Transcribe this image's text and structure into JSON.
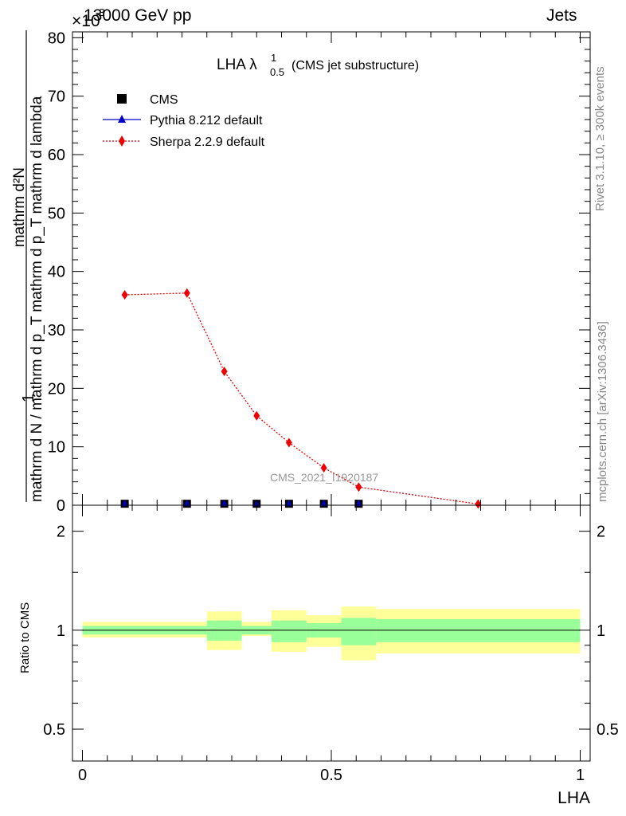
{
  "header": {
    "left": "13000 GeV pp",
    "right": "Jets",
    "multiplier_base": "×10",
    "multiplier_exp": "-3"
  },
  "side": {
    "rivet": "Rivet 3.1.10, ≥ 300k events",
    "mcplots": "mcplots.cern.ch [arXiv:1306.3436]"
  },
  "chart_data": [
    {
      "type": "line",
      "title": "LHA λ",
      "title_sup": "1",
      "title_sub": "0.5",
      "subtitle": "(CMS jet substructure)",
      "watermark": "CMS_2021_I1920187",
      "ylabel_numerator": "mathrm d²N",
      "ylabel_denominator": "mathrm d N / mathrm d p_T mathrm d p_T mathrm d lambda",
      "ylabel_prefix": "1",
      "ylim": [
        0,
        81
      ],
      "yticks": [
        0,
        10,
        20,
        30,
        40,
        50,
        60,
        70,
        80
      ],
      "xlim": [
        -0.02,
        1.02
      ],
      "series": [
        {
          "name": "CMS",
          "marker": "square",
          "color": "#000000",
          "x": [
            0.085,
            0.21,
            0.285,
            0.35,
            0.415,
            0.485,
            0.555
          ],
          "y": [
            0.25,
            0.25,
            0.25,
            0.25,
            0.25,
            0.25,
            0.25
          ]
        },
        {
          "name": "Pythia 8.212 default",
          "marker": "triangle",
          "color": "#0000cc",
          "x": [
            0.085,
            0.21,
            0.285,
            0.35,
            0.415,
            0.485,
            0.555
          ],
          "y": [
            0.25,
            0.25,
            0.25,
            0.25,
            0.25,
            0.25,
            0.25
          ]
        },
        {
          "name": "Sherpa 2.2.9 default",
          "marker": "diamond",
          "color": "#ee0000",
          "x": [
            0.085,
            0.21,
            0.285,
            0.35,
            0.415,
            0.485,
            0.555,
            0.795
          ],
          "y": [
            36.0,
            36.3,
            22.9,
            15.3,
            10.7,
            6.4,
            3.1,
            0.2
          ]
        }
      ]
    },
    {
      "type": "area",
      "ylabel": "Ratio to CMS",
      "xlabel": "LHA",
      "ylim": [
        0.4,
        2.4
      ],
      "yscale": "log",
      "yticks": [
        0.5,
        1,
        2
      ],
      "yticklabels": [
        "0.5",
        "1",
        "2"
      ],
      "xticks": [
        0,
        0.5,
        1
      ],
      "xticklabels": [
        "0",
        "0.5",
        "1"
      ],
      "bins": [
        {
          "lo": 0.0,
          "hi": 0.25,
          "green": [
            0.97,
            1.03
          ],
          "yellow": [
            0.95,
            1.06
          ]
        },
        {
          "lo": 0.25,
          "hi": 0.32,
          "green": [
            0.93,
            1.07
          ],
          "yellow": [
            0.87,
            1.14
          ]
        },
        {
          "lo": 0.32,
          "hi": 0.38,
          "green": [
            0.97,
            1.03
          ],
          "yellow": [
            0.96,
            1.06
          ]
        },
        {
          "lo": 0.38,
          "hi": 0.45,
          "green": [
            0.92,
            1.07
          ],
          "yellow": [
            0.86,
            1.15
          ]
        },
        {
          "lo": 0.45,
          "hi": 0.52,
          "green": [
            0.95,
            1.05
          ],
          "yellow": [
            0.89,
            1.11
          ]
        },
        {
          "lo": 0.52,
          "hi": 0.59,
          "green": [
            0.9,
            1.09
          ],
          "yellow": [
            0.81,
            1.18
          ]
        },
        {
          "lo": 0.59,
          "hi": 1.0,
          "green": [
            0.92,
            1.08
          ],
          "yellow": [
            0.85,
            1.16
          ]
        }
      ]
    }
  ]
}
